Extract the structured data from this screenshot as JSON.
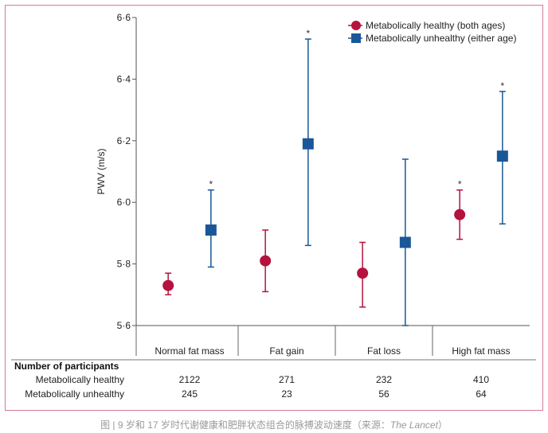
{
  "chart_data": {
    "type": "scatter",
    "ylabel": "PWV (m/s)",
    "ylim": [
      5.6,
      6.6
    ],
    "yticks": [
      5.6,
      5.8,
      6.0,
      6.2,
      6.4,
      6.6
    ],
    "ytick_labels": [
      "5·6",
      "5·8",
      "6·0",
      "6·2",
      "6·4",
      "6·6"
    ],
    "categories": [
      "Normal fat mass",
      "Fat gain",
      "Fat loss",
      "High fat mass"
    ],
    "series": [
      {
        "name": "Metabolically healthy (both ages)",
        "marker": "circle",
        "color": "#b5123e",
        "values": [
          5.73,
          5.81,
          5.77,
          5.96
        ],
        "lower": [
          5.7,
          5.71,
          5.66,
          5.88
        ],
        "upper": [
          5.77,
          5.91,
          5.87,
          6.04
        ],
        "significant": [
          false,
          false,
          false,
          true
        ]
      },
      {
        "name": "Metabolically unhealthy (either age)",
        "marker": "square",
        "color": "#1a5799",
        "values": [
          5.91,
          6.19,
          5.87,
          6.15
        ],
        "lower": [
          5.79,
          5.86,
          5.6,
          5.93
        ],
        "upper": [
          6.04,
          6.53,
          6.14,
          6.36
        ],
        "significant": [
          true,
          true,
          false,
          true
        ]
      }
    ],
    "significance_marker": "*",
    "legend_position": "top-right",
    "grid": false
  },
  "participants": {
    "heading": "Number of participants",
    "rows": [
      {
        "label": "Metabolically healthy",
        "values": [
          "2122",
          "271",
          "232",
          "410"
        ]
      },
      {
        "label": "Metabolically unhealthy",
        "values": [
          "245",
          "23",
          "56",
          "64"
        ]
      }
    ]
  },
  "caption": {
    "text": "图 | 9 岁和 17 岁时代谢健康和肥胖状态组合的脉搏波动速度（来源：",
    "source": "The Lancet",
    "close": "）"
  }
}
